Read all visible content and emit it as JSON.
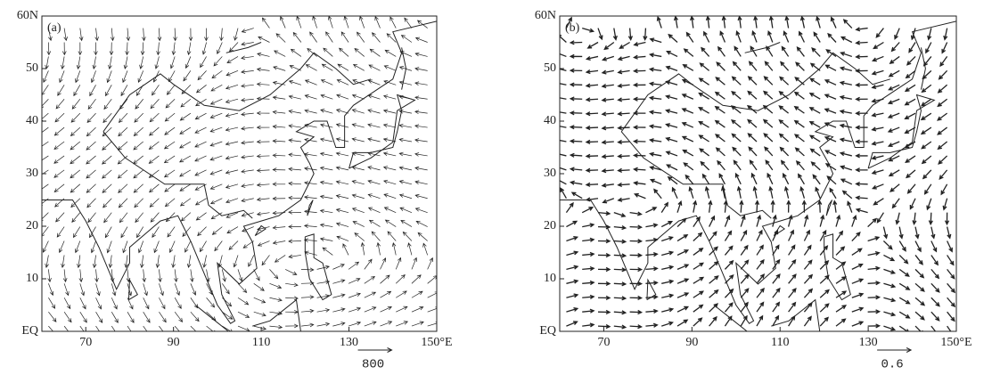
{
  "chart_data": [
    {
      "type": "quiver",
      "panel_label": "(a)",
      "xlim": [
        60,
        150
      ],
      "ylim": [
        0,
        60
      ],
      "xticks": [
        70,
        90,
        110,
        130,
        {
          "value": 150,
          "label": "150°E"
        }
      ],
      "yticks": [
        {
          "value": 0,
          "label": "EQ"
        },
        10,
        20,
        30,
        40,
        50,
        {
          "value": 60,
          "label": "60N"
        }
      ],
      "reference_vector": 800
    },
    {
      "type": "quiver",
      "panel_label": "(b)",
      "xlim": [
        60,
        150
      ],
      "ylim": [
        0,
        60
      ],
      "xticks": [
        70,
        90,
        110,
        130,
        {
          "value": 150,
          "label": "150°E"
        }
      ],
      "yticks": [
        {
          "value": 0,
          "label": "EQ"
        },
        10,
        20,
        30,
        40,
        50,
        {
          "value": 60,
          "label": "60N"
        }
      ],
      "reference_vector": 0.6
    }
  ]
}
